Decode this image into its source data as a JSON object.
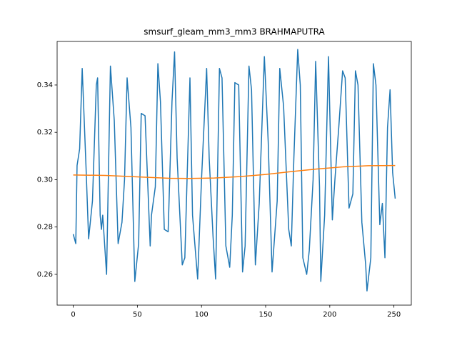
{
  "chart_data": {
    "type": "line",
    "title": "smsurf_gleam_mm3_mm3 BRAHMAPUTRA",
    "xlim": [
      -12.55,
      263.55
    ],
    "ylim": [
      0.247,
      0.3584
    ],
    "xticks": [
      0,
      50,
      100,
      150,
      200,
      250
    ],
    "yticks": [
      0.26,
      0.28,
      {
        "value": 0.3,
        "label": "0.30"
      },
      0.32,
      0.34
    ],
    "series": [
      {
        "color": "#1f77b4",
        "x": [
          0,
          2,
          3,
          5,
          7,
          10,
          12,
          15,
          18,
          19,
          21,
          22,
          23,
          26,
          29,
          32,
          35,
          38,
          40,
          42,
          45,
          48,
          51,
          53,
          56,
          60,
          61,
          64,
          66,
          68,
          71,
          74,
          77,
          79,
          81,
          85,
          87,
          91,
          93,
          97,
          100,
          104,
          106,
          109,
          111,
          114,
          116,
          119,
          122,
          124,
          126,
          129,
          132,
          134,
          137,
          139,
          142,
          145,
          149,
          152,
          155,
          159,
          161,
          164,
          168,
          170,
          172,
          175,
          177,
          179,
          182,
          184,
          187,
          189,
          192,
          193,
          196,
          199,
          202,
          204,
          207,
          210,
          212,
          215,
          218,
          220,
          222,
          225,
          228,
          229,
          232,
          234,
          236,
          239,
          241,
          243,
          245,
          247,
          249,
          251
        ],
        "values": [
          0.277,
          0.273,
          0.306,
          0.313,
          0.347,
          0.305,
          0.275,
          0.291,
          0.34,
          0.343,
          0.285,
          0.279,
          0.285,
          0.26,
          0.348,
          0.325,
          0.273,
          0.282,
          0.3,
          0.343,
          0.322,
          0.257,
          0.273,
          0.328,
          0.327,
          0.272,
          0.285,
          0.297,
          0.349,
          0.333,
          0.279,
          0.278,
          0.333,
          0.354,
          0.309,
          0.264,
          0.267,
          0.343,
          0.285,
          0.258,
          0.3,
          0.347,
          0.309,
          0.276,
          0.258,
          0.347,
          0.343,
          0.272,
          0.263,
          0.285,
          0.341,
          0.34,
          0.261,
          0.272,
          0.348,
          0.338,
          0.264,
          0.29,
          0.352,
          0.316,
          0.261,
          0.291,
          0.347,
          0.331,
          0.279,
          0.272,
          0.309,
          0.355,
          0.34,
          0.267,
          0.26,
          0.27,
          0.3,
          0.35,
          0.297,
          0.257,
          0.285,
          0.352,
          0.283,
          0.3,
          0.322,
          0.346,
          0.343,
          0.288,
          0.294,
          0.346,
          0.34,
          0.282,
          0.264,
          0.253,
          0.267,
          0.349,
          0.34,
          0.281,
          0.29,
          0.267,
          0.322,
          0.338,
          0.303,
          0.292
        ]
      },
      {
        "color": "#ff7f0e",
        "x": [
          0,
          25,
          50,
          75,
          90,
          110,
          130,
          150,
          170,
          190,
          210,
          230,
          251
        ],
        "values": [
          0.302,
          0.3018,
          0.3012,
          0.3006,
          0.3005,
          0.3007,
          0.3013,
          0.3022,
          0.3034,
          0.3045,
          0.3054,
          0.3059,
          0.306
        ]
      }
    ]
  }
}
